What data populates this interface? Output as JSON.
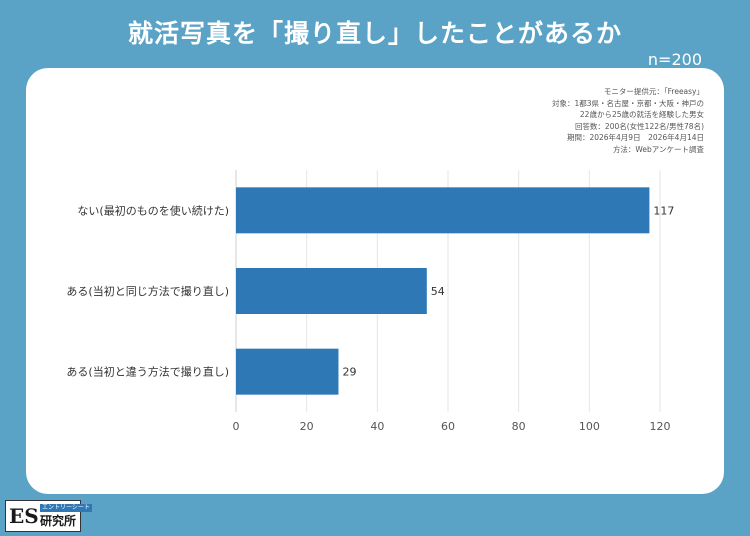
{
  "header": {
    "title": "就活写真を「撮り直し」したことがあるか",
    "sample_size": "n=200"
  },
  "survey_info": [
    "モニター提供元：「Freeasy」",
    "対象：1都3県・名古屋・京都・大阪・神戸の",
    "22歳から25歳の就活を経験した男女",
    "回答数：200名(女性122名/男性78名)",
    "期間：2026年4月9日　2026年4月14日",
    "方法：Webアンケート調査"
  ],
  "logo": {
    "mark": "ES",
    "tagline": "エントリーシート",
    "name": "研究所"
  },
  "colors": {
    "background": "#5aa3c7",
    "bar": "#2e78b6",
    "card": "#ffffff"
  },
  "chart_data": {
    "type": "bar",
    "orientation": "horizontal",
    "categories": [
      "ない(最初のものを使い続けた)",
      "ある(当初と同じ方法で撮り直し)",
      "ある(当初と違う方法で撮り直し)"
    ],
    "values": [
      117,
      54,
      29
    ],
    "xlim": [
      0,
      120
    ],
    "xticks": [
      0,
      20,
      40,
      60,
      80,
      100,
      120
    ],
    "grid": true,
    "data_labels": true
  }
}
